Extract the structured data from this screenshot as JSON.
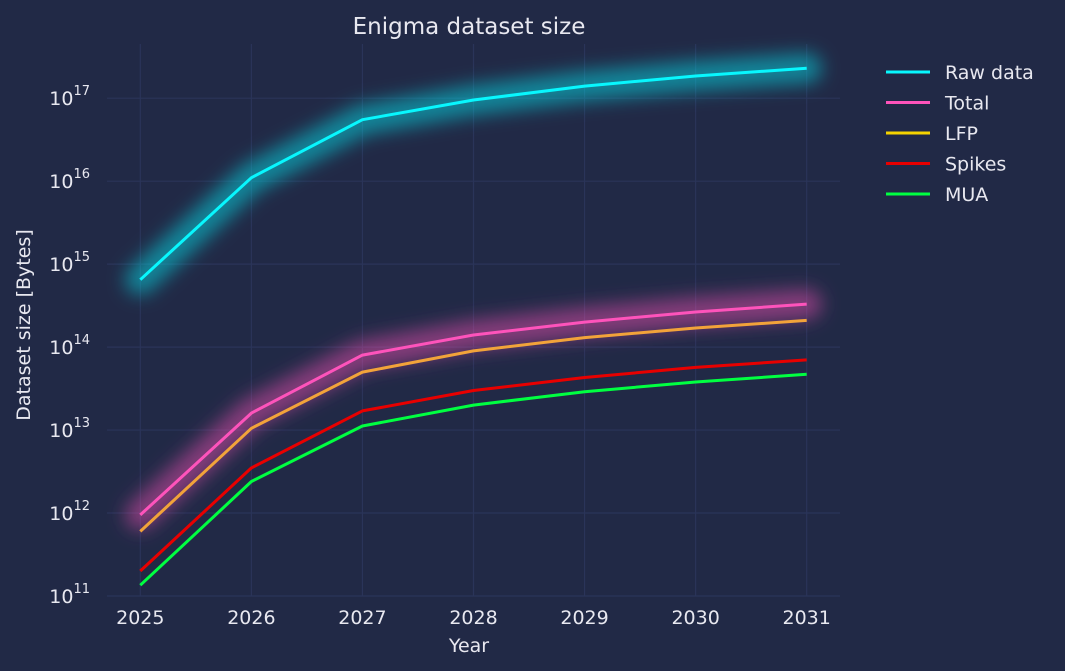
{
  "chart_data": {
    "type": "line",
    "title": "Enigma dataset size",
    "xlabel": "Year",
    "ylabel": "Dataset size [Bytes]",
    "yscale": "log",
    "ylim": [
      100000000000.0,
      4.5e+17
    ],
    "xlim": [
      2024.7,
      2031.3
    ],
    "grid": true,
    "legend_position": "outside-right",
    "x": [
      2025,
      2026,
      2027,
      2028,
      2029,
      2030,
      2031
    ],
    "x_tick_labels": [
      "2025",
      "2026",
      "2027",
      "2028",
      "2029",
      "2030",
      "2031"
    ],
    "y_ticks": [
      {
        "value": 100000000000.0,
        "base": "10",
        "exp": "11"
      },
      {
        "value": 1000000000000.0,
        "base": "10",
        "exp": "12"
      },
      {
        "value": 10000000000000.0,
        "base": "10",
        "exp": "13"
      },
      {
        "value": 100000000000000.0,
        "base": "10",
        "exp": "14"
      },
      {
        "value": 1000000000000000.0,
        "base": "10",
        "exp": "15"
      },
      {
        "value": 1e+16,
        "base": "10",
        "exp": "16"
      },
      {
        "value": 1e+17,
        "base": "10",
        "exp": "17"
      }
    ],
    "series": [
      {
        "name": "Raw data",
        "color": "#08F7FE",
        "glow": true,
        "values": [
          650000000000000.0,
          1.1e+16,
          5.5e+16,
          9.5e+16,
          1.4e+17,
          1.85e+17,
          2.3e+17
        ]
      },
      {
        "name": "Total",
        "color": "#FE53BB",
        "glow": true,
        "values": [
          950000000000.0,
          16000000000000.0,
          80000000000000.0,
          140000000000000.0,
          200000000000000.0,
          265000000000000.0,
          330000000000000.0
        ]
      },
      {
        "name": "LFP",
        "color": "#F5D300",
        "line_color": "#F2A33A",
        "glow": false,
        "values": [
          600000000000.0,
          10500000000000.0,
          50000000000000.0,
          90000000000000.0,
          130000000000000.0,
          170000000000000.0,
          210000000000000.0
        ]
      },
      {
        "name": "Spikes",
        "color": "#E80000",
        "glow": false,
        "values": [
          200000000000.0,
          3500000000000.0,
          17000000000000.0,
          30000000000000.0,
          43000000000000.0,
          57000000000000.0,
          70000000000000.0
        ]
      },
      {
        "name": "MUA",
        "color": "#00ff41",
        "glow": false,
        "values": [
          135000000000.0,
          2400000000000.0,
          11200000000000.0,
          20000000000000.0,
          29000000000000.0,
          38000000000000.0,
          47000000000000.0
        ]
      }
    ]
  }
}
